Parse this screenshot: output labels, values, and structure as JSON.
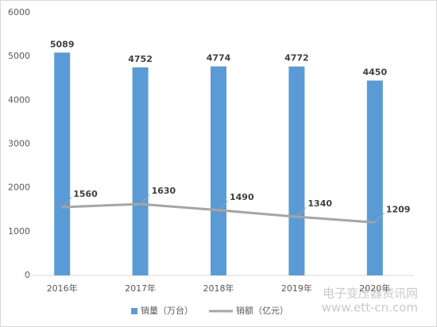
{
  "chart_data": {
    "type": "bar",
    "categories": [
      "2016年",
      "2017年",
      "2018年",
      "2019年",
      "2020年"
    ],
    "series": [
      {
        "name": "销量（万台）",
        "type": "bar",
        "color": "#5b9bd5",
        "values": [
          5089,
          4752,
          4774,
          4772,
          4450
        ]
      },
      {
        "name": "销额（亿元）",
        "type": "line",
        "color": "#a5a5a5",
        "values": [
          1560,
          1630,
          1490,
          1340,
          1209
        ]
      }
    ],
    "ylim": [
      0,
      6000
    ],
    "yticks": [
      0,
      1000,
      2000,
      3000,
      4000,
      5000,
      6000
    ],
    "grid": false,
    "legend": "bottom"
  },
  "watermark": {
    "name": "电子变压器资讯网",
    "url": "www.ett-cn.com"
  }
}
